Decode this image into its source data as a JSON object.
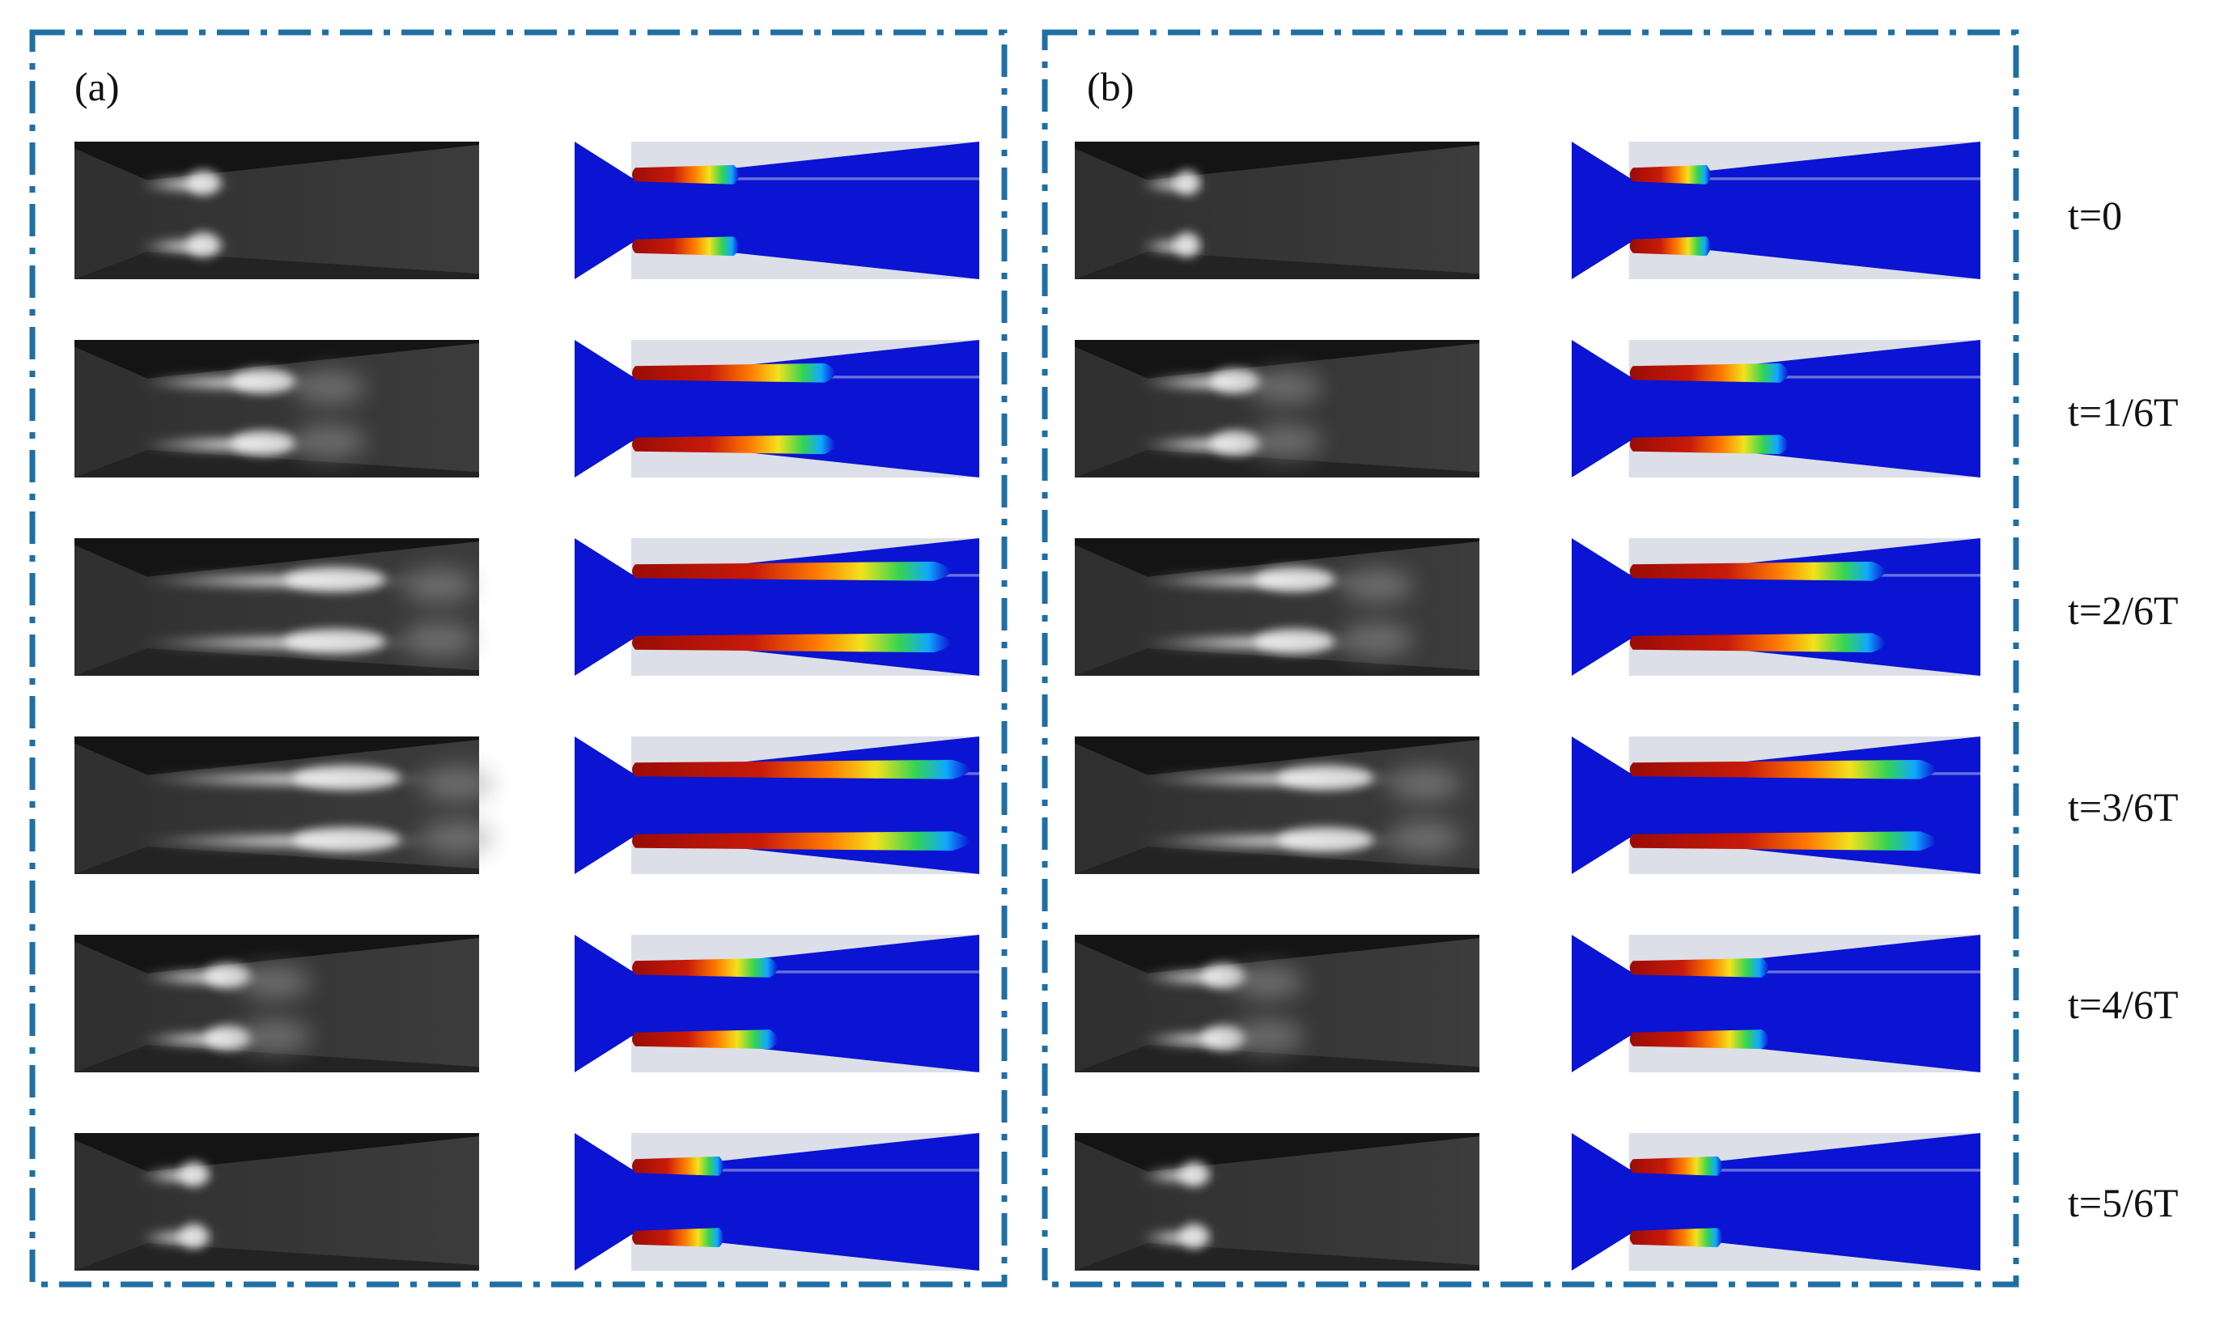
{
  "figure": {
    "panels": [
      {
        "id": "a",
        "label": "(a)"
      },
      {
        "id": "b",
        "label": "(b)"
      }
    ],
    "time_labels": [
      "t=0",
      "t=1/6T",
      "t=2/6T",
      "t=3/6T",
      "t=4/6T",
      "t=5/6T"
    ],
    "border_color": "#1f6fa3",
    "sim_colormap": [
      "#0a14d2",
      "#00b4ff",
      "#30d84a",
      "#f0e020",
      "#ff8a00",
      "#b4120a"
    ]
  },
  "rows": [
    {
      "cavity_a": 0.27,
      "cavity_b": 0.2
    },
    {
      "cavity_a": 0.52,
      "cavity_b": 0.4
    },
    {
      "cavity_a": 0.82,
      "cavity_b": 0.65
    },
    {
      "cavity_a": 0.87,
      "cavity_b": 0.78
    },
    {
      "cavity_a": 0.37,
      "cavity_b": 0.35
    },
    {
      "cavity_a": 0.23,
      "cavity_b": 0.23
    }
  ]
}
